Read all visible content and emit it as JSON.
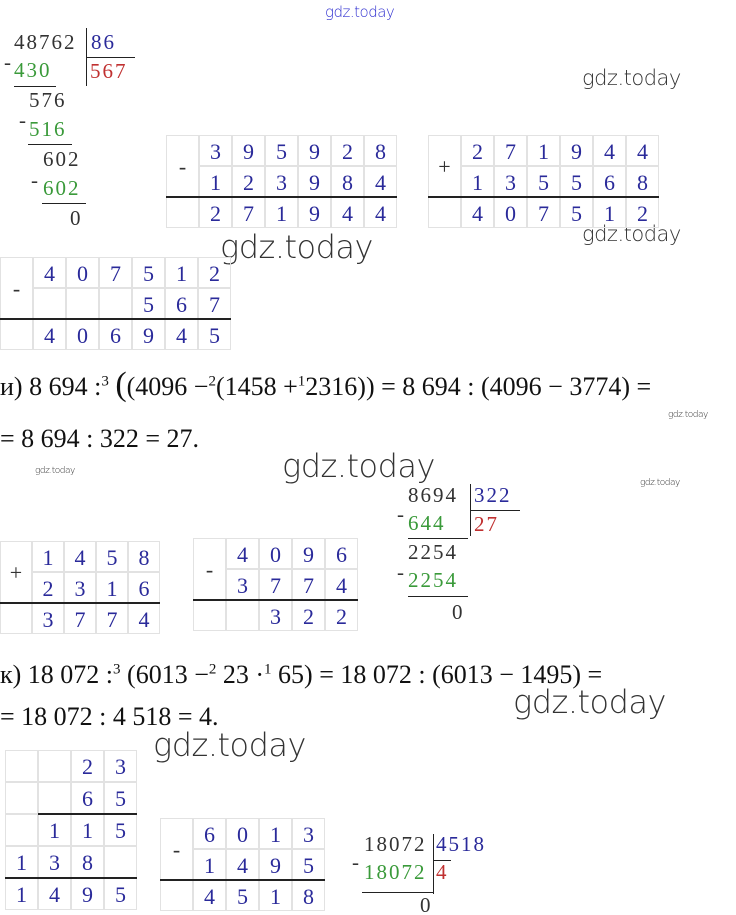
{
  "watermarks": [
    "gdz.today",
    "gdz.today",
    "gdz.today",
    "gdz.today",
    "gdz.today",
    "gdz.today",
    "gdz.today",
    "gdz.today",
    "gdz.today",
    "gdz.today"
  ],
  "division1": {
    "dividend": "48762",
    "divisor": "86",
    "quotient": "567",
    "steps": [
      "430",
      "576",
      "516",
      "602",
      "602",
      "0"
    ]
  },
  "table1": {
    "op": "-",
    "rows": [
      [
        "3",
        "9",
        "5",
        "9",
        "2",
        "8"
      ],
      [
        "1",
        "2",
        "3",
        "9",
        "8",
        "4"
      ],
      [
        "2",
        "7",
        "1",
        "9",
        "4",
        "4"
      ]
    ]
  },
  "table2": {
    "op": "+",
    "rows": [
      [
        "2",
        "7",
        "1",
        "9",
        "4",
        "4"
      ],
      [
        "1",
        "3",
        "5",
        "5",
        "6",
        "8"
      ],
      [
        "4",
        "0",
        "7",
        "5",
        "1",
        "2"
      ]
    ]
  },
  "table3": {
    "op": "-",
    "rows": [
      [
        "4",
        "0",
        "7",
        "5",
        "1",
        "2"
      ],
      [
        "",
        "",
        "",
        "5",
        "6",
        "7"
      ],
      [
        "4",
        "0",
        "6",
        "9",
        "4",
        "5"
      ]
    ]
  },
  "expr_i": {
    "label": "и)",
    "line1_a": "8 694 :",
    "sup3": "3",
    "line1_b": "(4096 −",
    "sup2": "2",
    "line1_c": "(1458 +",
    "sup1": "1",
    "line1_d": "2316)) = 8 694 : (4096 − 3774) =",
    "line2": "= 8 694 : 322 = 27."
  },
  "division2": {
    "dividend": "8694",
    "divisor": "322",
    "quotient": "27",
    "steps": [
      "644",
      "2254",
      "2254",
      "0"
    ]
  },
  "table4": {
    "op": "+",
    "rows": [
      [
        "1",
        "4",
        "5",
        "8"
      ],
      [
        "2",
        "3",
        "1",
        "6"
      ],
      [
        "3",
        "7",
        "7",
        "4"
      ]
    ]
  },
  "table5": {
    "op": "-",
    "rows": [
      [
        "4",
        "0",
        "9",
        "6"
      ],
      [
        "3",
        "7",
        "7",
        "4"
      ],
      [
        "",
        "3",
        "2",
        "2"
      ]
    ]
  },
  "expr_k": {
    "label": "к)",
    "line1_a": "18 072 :",
    "sup3": "3",
    "line1_b": "(6013 −",
    "sup2": "2",
    "line1_c": "23 ·",
    "sup1": "1",
    "line1_d": "65) = 18 072 : (6013 − 1495) =",
    "line2": "= 18 072 : 4 518 = 4."
  },
  "table6": {
    "rows": [
      [
        "",
        "",
        "2",
        "3"
      ],
      [
        "",
        "",
        "6",
        "5"
      ],
      [
        "",
        "1",
        "1",
        "5"
      ],
      [
        "1",
        "3",
        "8",
        ""
      ],
      [
        "1",
        "4",
        "9",
        "5"
      ]
    ]
  },
  "table7": {
    "op": "-",
    "rows": [
      [
        "6",
        "0",
        "1",
        "3"
      ],
      [
        "1",
        "4",
        "9",
        "5"
      ],
      [
        "4",
        "5",
        "1",
        "8"
      ]
    ]
  },
  "division3": {
    "dividend": "18072",
    "divisor": "4518",
    "quotient": "4",
    "steps": [
      "18072",
      "0"
    ]
  }
}
